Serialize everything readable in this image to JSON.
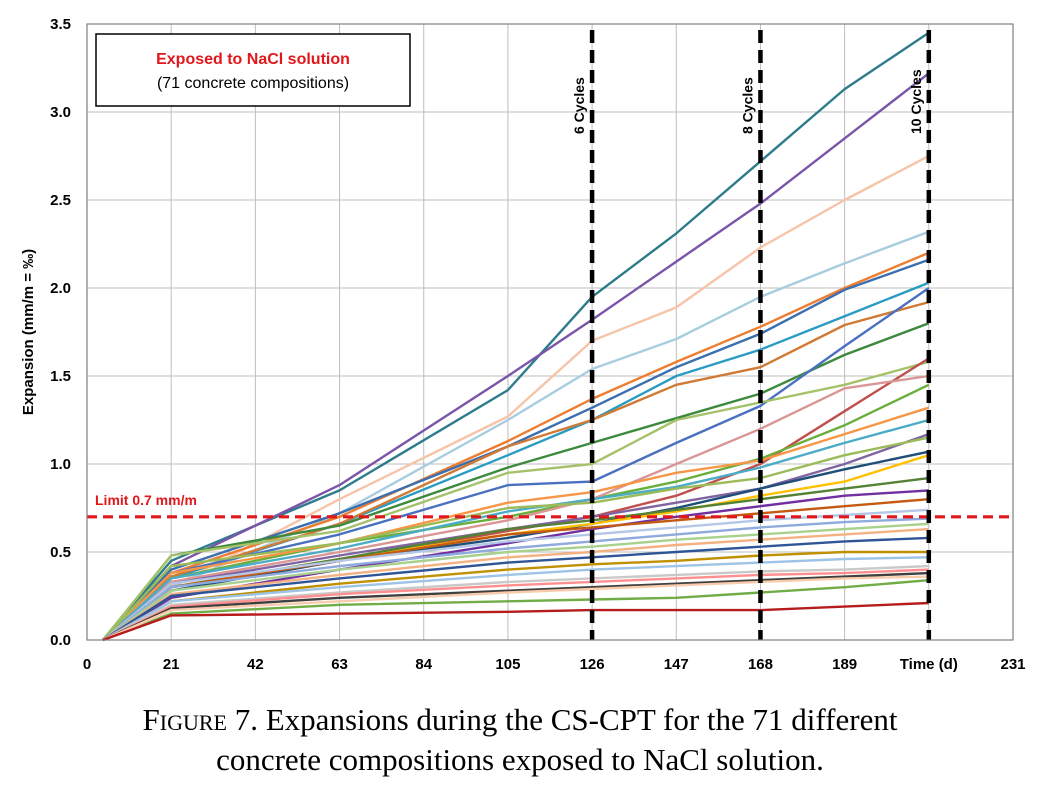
{
  "chart_data": {
    "type": "line",
    "legend_box": {
      "title": "Exposed to NaCl solution",
      "subtitle": "(71 concrete compositions)"
    },
    "ylabel": "Expansion (mm/m = ‰)",
    "xlabel": "Time (d)",
    "xlim": [
      0,
      231
    ],
    "ylim": [
      0,
      3.5
    ],
    "x_ticks": [
      "0",
      "21",
      "42",
      "63",
      "84",
      "105",
      "126",
      "147",
      "168",
      "189",
      "Time (d)",
      "231"
    ],
    "y_ticks": [
      "0.0",
      "0.5",
      "1.0",
      "1.5",
      "2.0",
      "2.5",
      "3.0",
      "3.5"
    ],
    "grid": true,
    "limit_line": {
      "label": "Limit 0.7 mm/m",
      "value": 0.7,
      "color": "#e0171b"
    },
    "cycle_markers": [
      {
        "label": "6 Cycles",
        "x": 126
      },
      {
        "label": "8 Cycles",
        "x": 168
      },
      {
        "label": "10 Cycles",
        "x": 210
      }
    ],
    "x": [
      4,
      21,
      63,
      105,
      126,
      147,
      168,
      189,
      210
    ],
    "series": [
      {
        "color": "#2e7b8c",
        "values": [
          0,
          0.45,
          0.85,
          1.42,
          1.95,
          2.31,
          2.72,
          3.13,
          3.45
        ]
      },
      {
        "color": "#7a55a8",
        "values": [
          0,
          0.42,
          0.88,
          1.5,
          1.82,
          2.15,
          2.48,
          2.85,
          3.22
        ]
      },
      {
        "color": "#f6c5a9",
        "values": [
          0,
          0.3,
          0.8,
          1.27,
          1.7,
          1.89,
          2.23,
          2.5,
          2.75
        ]
      },
      {
        "color": "#a9cde0",
        "values": [
          0,
          0.3,
          0.72,
          1.25,
          1.54,
          1.71,
          1.95,
          2.14,
          2.32
        ]
      },
      {
        "color": "#ed7d31",
        "values": [
          0,
          0.38,
          0.7,
          1.13,
          1.37,
          1.58,
          1.78,
          2.0,
          2.2
        ]
      },
      {
        "color": "#3c6fb0",
        "values": [
          0,
          0.4,
          0.72,
          1.1,
          1.32,
          1.55,
          1.74,
          1.99,
          2.16
        ]
      },
      {
        "color": "#2a9bc2",
        "values": [
          0,
          0.35,
          0.66,
          1.05,
          1.25,
          1.5,
          1.65,
          1.84,
          2.03
        ]
      },
      {
        "color": "#d07a35",
        "values": [
          0,
          0.36,
          0.66,
          1.1,
          1.25,
          1.45,
          1.55,
          1.79,
          1.92
        ]
      },
      {
        "color": "#3d8a3e",
        "values": [
          0,
          0.48,
          0.65,
          0.98,
          1.12,
          1.26,
          1.4,
          1.62,
          1.8
        ]
      },
      {
        "color": "#4a70c0",
        "values": [
          0,
          0.38,
          0.6,
          0.88,
          0.9,
          1.12,
          1.33,
          1.67,
          2.0
        ]
      },
      {
        "color": "#a5c26b",
        "values": [
          0,
          0.48,
          0.62,
          0.95,
          1.0,
          1.25,
          1.35,
          1.45,
          1.58
        ]
      },
      {
        "color": "#c0504d",
        "values": [
          0,
          0.3,
          0.45,
          0.62,
          0.7,
          0.82,
          1.0,
          1.3,
          1.6
        ]
      },
      {
        "color": "#6aae3d",
        "values": [
          0,
          0.35,
          0.55,
          0.7,
          0.8,
          0.9,
          1.03,
          1.22,
          1.45
        ]
      },
      {
        "color": "#d99694",
        "values": [
          0,
          0.33,
          0.5,
          0.68,
          0.8,
          1.0,
          1.2,
          1.43,
          1.5
        ]
      },
      {
        "color": "#f79646",
        "values": [
          0,
          0.38,
          0.55,
          0.78,
          0.84,
          0.95,
          1.02,
          1.17,
          1.32
        ]
      },
      {
        "color": "#4bacc6",
        "values": [
          0,
          0.35,
          0.52,
          0.73,
          0.8,
          0.87,
          0.98,
          1.12,
          1.25
        ]
      },
      {
        "color": "#8064a2",
        "values": [
          0,
          0.32,
          0.48,
          0.63,
          0.7,
          0.78,
          0.86,
          1.0,
          1.17
        ]
      },
      {
        "color": "#9bbb59",
        "values": [
          0,
          0.42,
          0.55,
          0.75,
          0.78,
          0.86,
          0.92,
          1.05,
          1.15
        ]
      },
      {
        "color": "#1f4e79",
        "values": [
          0,
          0.28,
          0.45,
          0.58,
          0.66,
          0.75,
          0.86,
          0.97,
          1.07
        ]
      },
      {
        "color": "#ffc000",
        "values": [
          0,
          0.3,
          0.46,
          0.6,
          0.66,
          0.73,
          0.82,
          0.9,
          1.05
        ]
      },
      {
        "color": "#7030a0",
        "values": [
          0,
          0.24,
          0.4,
          0.55,
          0.63,
          0.7,
          0.76,
          0.82,
          0.85
        ]
      },
      {
        "color": "#548235",
        "values": [
          0,
          0.3,
          0.46,
          0.63,
          0.68,
          0.74,
          0.8,
          0.86,
          0.92
        ]
      },
      {
        "color": "#c55a11",
        "values": [
          0,
          0.3,
          0.45,
          0.6,
          0.64,
          0.68,
          0.72,
          0.76,
          0.8
        ]
      },
      {
        "color": "#b4c7e7",
        "values": [
          0,
          0.32,
          0.45,
          0.56,
          0.6,
          0.64,
          0.68,
          0.71,
          0.74
        ]
      },
      {
        "color": "#8faadc",
        "values": [
          0,
          0.3,
          0.42,
          0.52,
          0.56,
          0.6,
          0.64,
          0.67,
          0.69
        ]
      },
      {
        "color": "#a9d18e",
        "values": [
          0,
          0.28,
          0.4,
          0.5,
          0.53,
          0.57,
          0.6,
          0.63,
          0.66
        ]
      },
      {
        "color": "#f4b183",
        "values": [
          0,
          0.26,
          0.37,
          0.47,
          0.5,
          0.54,
          0.57,
          0.6,
          0.63
        ]
      },
      {
        "color": "#2f5597",
        "values": [
          0,
          0.25,
          0.35,
          0.44,
          0.47,
          0.5,
          0.53,
          0.56,
          0.58
        ]
      },
      {
        "color": "#bf9000",
        "values": [
          0,
          0.22,
          0.32,
          0.4,
          0.43,
          0.45,
          0.48,
          0.5,
          0.5
        ]
      },
      {
        "color": "#9dc3e6",
        "values": [
          0,
          0.22,
          0.3,
          0.37,
          0.4,
          0.42,
          0.44,
          0.46,
          0.47
        ]
      },
      {
        "color": "#c9c9c9",
        "values": [
          0,
          0.2,
          0.27,
          0.33,
          0.35,
          0.37,
          0.39,
          0.4,
          0.42
        ]
      },
      {
        "color": "#ff8f8f",
        "values": [
          0,
          0.19,
          0.26,
          0.31,
          0.33,
          0.35,
          0.37,
          0.38,
          0.4
        ]
      },
      {
        "color": "#404040",
        "values": [
          0,
          0.18,
          0.24,
          0.28,
          0.3,
          0.32,
          0.34,
          0.36,
          0.38
        ]
      },
      {
        "color": "#70ad47",
        "values": [
          0,
          0.15,
          0.2,
          0.22,
          0.23,
          0.24,
          0.27,
          0.3,
          0.34
        ]
      },
      {
        "color": "#f8cbad",
        "values": [
          0,
          0.17,
          0.22,
          0.27,
          0.29,
          0.31,
          0.33,
          0.35,
          0.36
        ]
      },
      {
        "color": "#b71c1c",
        "values": [
          0,
          0.14,
          0.15,
          0.16,
          0.17,
          0.17,
          0.17,
          0.19,
          0.21
        ]
      }
    ]
  },
  "caption": {
    "figure_label": "Figure 7.",
    "line1": "Expansions during the CS-CPT for the 71 different",
    "line2": "concrete compositions exposed to NaCl solution."
  }
}
